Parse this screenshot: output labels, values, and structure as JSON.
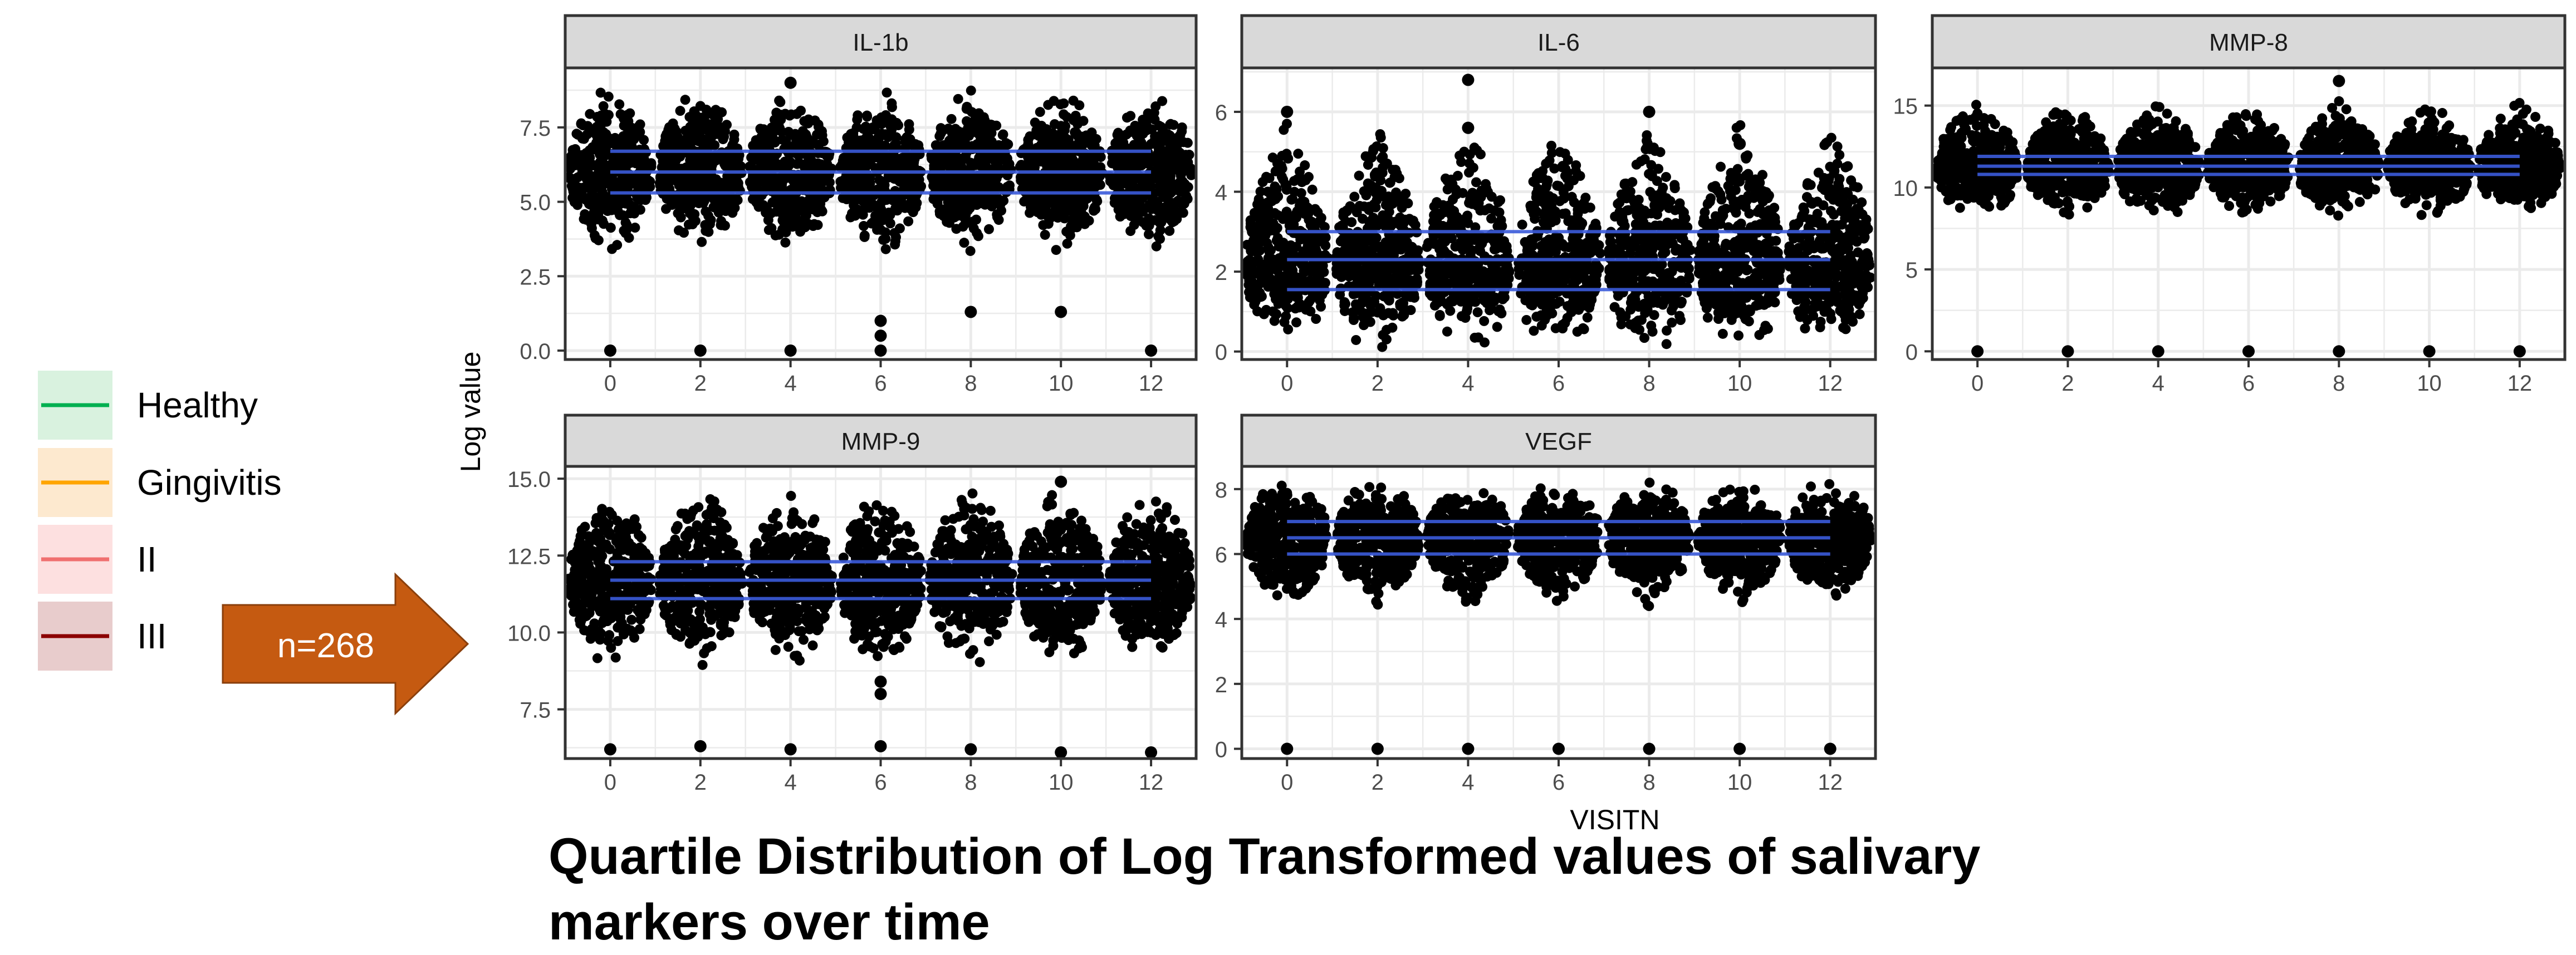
{
  "legend": {
    "items": [
      {
        "label": "Healthy",
        "line_color": "#00b050",
        "bg_color": "#d9f2df"
      },
      {
        "label": "Gingivitis",
        "line_color": "#ffa500",
        "bg_color": "#fde9cf"
      },
      {
        "label": "II",
        "line_color": "#f07070",
        "bg_color": "#fde0e0"
      },
      {
        "label": "III",
        "line_color": "#8b0000",
        "bg_color": "#e8cccc"
      }
    ]
  },
  "arrow": {
    "label": "n=268",
    "color": "#c55a11"
  },
  "axes": {
    "xlabel": "VISITN",
    "ylabel": "Log value"
  },
  "caption": {
    "line1": "Quartile Distribution of Log Transformed values of salivary",
    "line2": "markers over time"
  },
  "colors": {
    "points": "#000000",
    "quartile_lines": "#3b5bdb",
    "strip": "#d9d9d9",
    "grid": "#ebebeb"
  },
  "chart_data": [
    {
      "type": "scatter",
      "title": "IL-1b",
      "x": [
        0,
        2,
        4,
        6,
        8,
        10,
        12
      ],
      "xticks": [
        0,
        2,
        4,
        6,
        8,
        10,
        12
      ],
      "xlim": [
        -1,
        13
      ],
      "yticks": [
        0.0,
        2.5,
        5.0,
        7.5
      ],
      "ytick_labels": [
        "0.0",
        "2.5",
        "5.0",
        "7.5"
      ],
      "ylim": [
        -0.3,
        9.5
      ],
      "median": 6.0,
      "quartiles": [
        5.3,
        6.7
      ],
      "spread": [
        3.1,
        8.9
      ],
      "outliers": [
        [
          0,
          0
        ],
        [
          2,
          0
        ],
        [
          4,
          0
        ],
        [
          6,
          0
        ],
        [
          12,
          0
        ],
        [
          4,
          9.0
        ],
        [
          6,
          1.0
        ],
        [
          6,
          0.5
        ],
        [
          8,
          1.3
        ],
        [
          10,
          1.3
        ]
      ]
    },
    {
      "type": "scatter",
      "title": "IL-6",
      "x": [
        0,
        2,
        4,
        6,
        8,
        10,
        12
      ],
      "xticks": [
        0,
        2,
        4,
        6,
        8,
        10,
        12
      ],
      "xlim": [
        -1,
        13
      ],
      "yticks": [
        0,
        2,
        4,
        6
      ],
      "ytick_labels": [
        "0",
        "2",
        "4",
        "6"
      ],
      "ylim": [
        -0.2,
        7.1
      ],
      "median": 2.3,
      "quartiles": [
        1.55,
        3.0
      ],
      "spread": [
        0,
        6.0
      ],
      "outliers": [
        [
          4,
          6.8
        ],
        [
          4,
          5.6
        ],
        [
          8,
          6.0
        ],
        [
          10,
          5.2
        ],
        [
          0,
          6.0
        ]
      ]
    },
    {
      "type": "scatter",
      "title": "MMP-8",
      "x": [
        0,
        2,
        4,
        6,
        8,
        10,
        12
      ],
      "xticks": [
        0,
        2,
        4,
        6,
        8,
        10,
        12
      ],
      "xlim": [
        -1,
        13
      ],
      "yticks": [
        0,
        5,
        10,
        15
      ],
      "ytick_labels": [
        "0",
        "5",
        "10",
        "15"
      ],
      "ylim": [
        -0.5,
        17.3
      ],
      "median": 11.3,
      "quartiles": [
        10.8,
        11.9
      ],
      "spread": [
        8.0,
        15.5
      ],
      "outliers": [
        [
          0,
          0
        ],
        [
          2,
          0
        ],
        [
          4,
          0
        ],
        [
          6,
          0
        ],
        [
          8,
          0
        ],
        [
          10,
          0
        ],
        [
          12,
          0
        ],
        [
          8,
          16.5
        ]
      ]
    },
    {
      "type": "scatter",
      "title": "MMP-9",
      "x": [
        0,
        2,
        4,
        6,
        8,
        10,
        12
      ],
      "xticks": [
        0,
        2,
        4,
        6,
        8,
        10,
        12
      ],
      "xlim": [
        -1,
        13
      ],
      "yticks": [
        7.5,
        10.0,
        12.5,
        15.0
      ],
      "ytick_labels": [
        "7.5",
        "10.0",
        "12.5",
        "15.0"
      ],
      "ylim": [
        5.9,
        15.4
      ],
      "median": 11.7,
      "quartiles": [
        11.1,
        12.3
      ],
      "spread": [
        8.8,
        14.8
      ],
      "outliers": [
        [
          0,
          6.2
        ],
        [
          2,
          6.3
        ],
        [
          4,
          6.2
        ],
        [
          6,
          6.3
        ],
        [
          8,
          6.2
        ],
        [
          10,
          6.1
        ],
        [
          12,
          6.1
        ],
        [
          6,
          8.4
        ],
        [
          6,
          8.0
        ],
        [
          10,
          14.9
        ]
      ]
    },
    {
      "type": "scatter",
      "title": "VEGF",
      "x": [
        0,
        2,
        4,
        6,
        8,
        10,
        12
      ],
      "xticks": [
        0,
        2,
        4,
        6,
        8,
        10,
        12
      ],
      "xlim": [
        -1,
        13
      ],
      "yticks": [
        0,
        2,
        4,
        6,
        8
      ],
      "ytick_labels": [
        "0",
        "2",
        "4",
        "6",
        "8"
      ],
      "ylim": [
        -0.3,
        8.7
      ],
      "median": 6.5,
      "quartiles": [
        6.0,
        7.0
      ],
      "spread": [
        4.2,
        8.3
      ],
      "outliers": [
        [
          0,
          0
        ],
        [
          2,
          0
        ],
        [
          4,
          0
        ],
        [
          6,
          0
        ],
        [
          8,
          0
        ],
        [
          10,
          0
        ],
        [
          12,
          0
        ]
      ]
    }
  ]
}
